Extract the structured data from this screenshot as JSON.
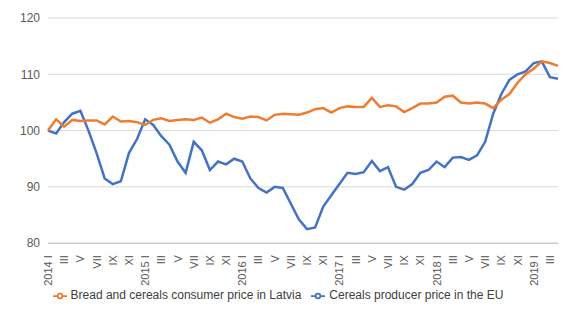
{
  "chart_data": {
    "type": "line",
    "categories": [
      "2014 I",
      null,
      "III",
      null,
      "V",
      null,
      "VII",
      null,
      "IX",
      null,
      "XI",
      null,
      "2015 I",
      null,
      "III",
      null,
      "V",
      null,
      "VII",
      null,
      "IX",
      null,
      "XI",
      null,
      "2016 I",
      null,
      "III",
      null,
      "V",
      null,
      "VII",
      null,
      "IX",
      null,
      "XI",
      null,
      "2017 I",
      null,
      "III",
      null,
      "V",
      null,
      "VII",
      null,
      "IX",
      null,
      "XI",
      null,
      "2018 I",
      null,
      "III",
      null,
      "V",
      null,
      "VII",
      null,
      "IX",
      null,
      "XI",
      null,
      "2019 I",
      null,
      "III",
      null
    ],
    "series": [
      {
        "name": "Cereals producer price in the EU",
        "color": "#4472C4",
        "values": [
          100,
          99.5,
          101.5,
          103,
          103.5,
          100,
          96,
          91.5,
          90.5,
          91,
          96,
          98.5,
          102,
          101,
          99,
          97.5,
          94.5,
          92.5,
          98,
          96.5,
          93,
          94.5,
          94,
          95,
          94.5,
          91.5,
          89.8,
          89,
          90,
          89.8,
          87,
          84.2,
          82.5,
          82.8,
          86.5,
          88.5,
          90.5,
          92.5,
          92.3,
          92.6,
          94.6,
          92.8,
          93.5,
          90,
          89.5,
          90.5,
          92.5,
          93,
          94.5,
          93.5,
          95.2,
          95.3,
          94.8,
          95.6,
          98,
          103,
          106.5,
          109,
          110,
          110.5,
          112,
          112.3,
          109.5,
          109.2
        ]
      },
      {
        "name": "Bread and cereals consumer price in Latvia",
        "color": "#ED7D31",
        "values": [
          100,
          102,
          100.7,
          101.9,
          101.7,
          101.8,
          101.8,
          101.1,
          102.5,
          101.6,
          101.7,
          101.5,
          101,
          101.9,
          102.2,
          101.7,
          101.9,
          102,
          101.9,
          102.3,
          101.4,
          102,
          103,
          102.4,
          102.1,
          102.5,
          102.4,
          101.8,
          102.8,
          103,
          102.9,
          102.8,
          103.2,
          103.8,
          104,
          103.2,
          104,
          104.3,
          104.2,
          104.2,
          105.8,
          104.2,
          104.5,
          104.3,
          103.3,
          104,
          104.8,
          104.8,
          105,
          106,
          106.2,
          105,
          104.8,
          105,
          104.8,
          104,
          105.5,
          106.5,
          108.5,
          110,
          111,
          112.3,
          112,
          111.5
        ]
      }
    ],
    "ylim": [
      80,
      120
    ],
    "yticks": [
      80,
      90,
      100,
      110,
      120
    ],
    "grid": true,
    "legend": "bottom"
  }
}
